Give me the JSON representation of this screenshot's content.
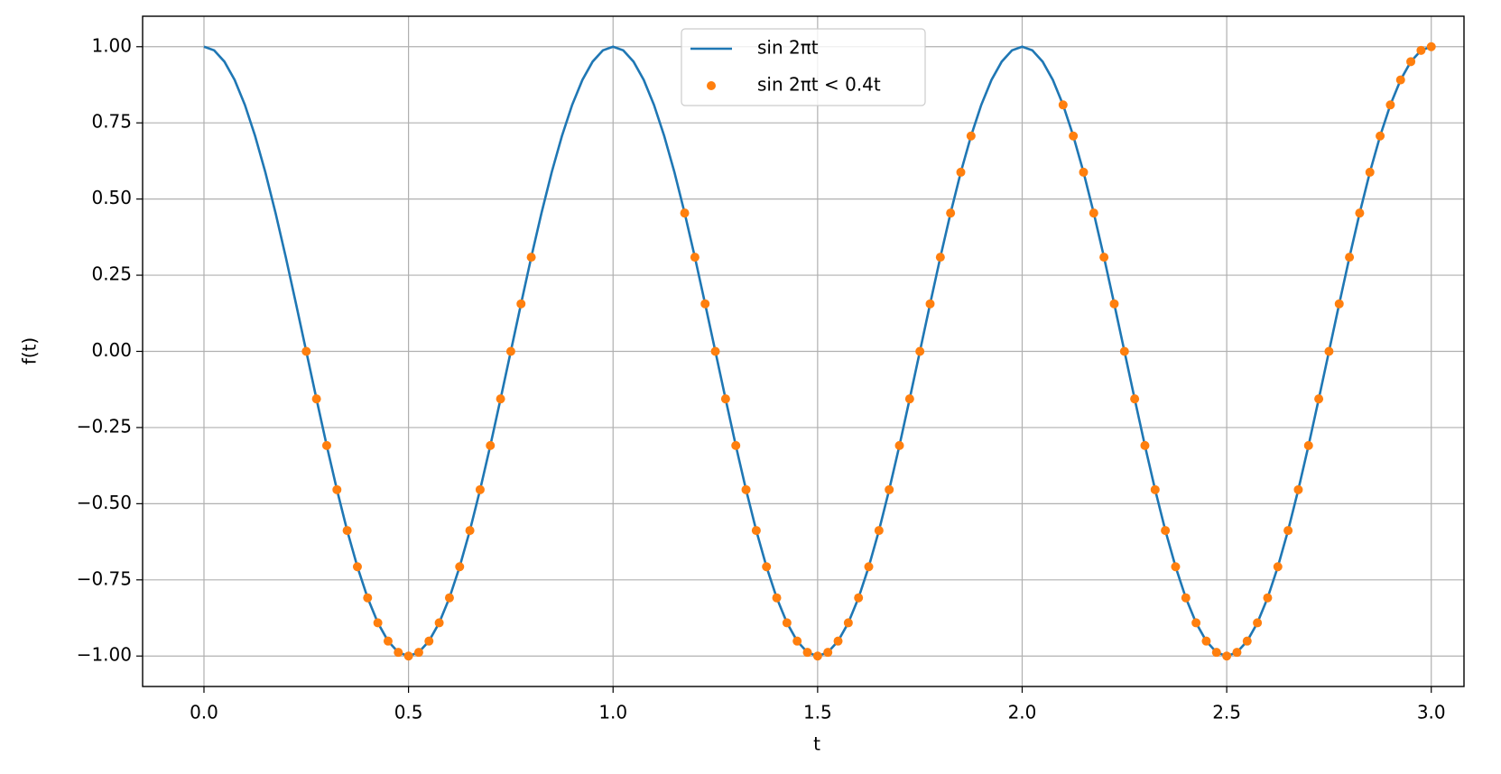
{
  "chart_data": {
    "type": "line",
    "xlabel": "t",
    "ylabel": "f(t)",
    "xlim": [
      -0.15,
      3.08
    ],
    "ylim": [
      -1.1,
      1.1
    ],
    "xticks": [
      {
        "value": 0,
        "label": "0.0"
      },
      0.5,
      {
        "value": 1,
        "label": "1.0"
      },
      1.5,
      {
        "value": 2,
        "label": "2.0"
      },
      2.5,
      {
        "value": 3,
        "label": "3.0"
      }
    ],
    "yticks": [
      {
        "value": -1,
        "label": "−1.00"
      },
      {
        "value": -0.75,
        "label": "−0.75"
      },
      {
        "value": -0.5,
        "label": "−0.50"
      },
      {
        "value": -0.25,
        "label": "−0.25"
      },
      {
        "value": 0,
        "label": "0.00"
      },
      {
        "value": 0.25,
        "label": "0.25"
      },
      {
        "value": 0.5,
        "label": "0.50"
      },
      {
        "value": 0.75,
        "label": "0.75"
      },
      {
        "value": 1,
        "label": "1.00"
      }
    ],
    "grid": true,
    "legend": "upper center",
    "series": [
      {
        "name": "sin 2πt",
        "color": "#1f77b4",
        "style": "line",
        "x": [
          0,
          0.025,
          0.05,
          0.075,
          0.1,
          0.125,
          0.15,
          0.175,
          0.2,
          0.225,
          0.25,
          0.275,
          0.3,
          0.325,
          0.35,
          0.375,
          0.4,
          0.425,
          0.45,
          0.475,
          0.5,
          0.525,
          0.55,
          0.575,
          0.6,
          0.625,
          0.65,
          0.675,
          0.7,
          0.725,
          0.75,
          0.775,
          0.8,
          0.825,
          0.85,
          0.875,
          0.9,
          0.925,
          0.95,
          0.975,
          1,
          1.025,
          1.05,
          1.075,
          1.1,
          1.125,
          1.15,
          1.175,
          1.2,
          1.225,
          1.25,
          1.275,
          1.3,
          1.325,
          1.35,
          1.375,
          1.4,
          1.425,
          1.45,
          1.475,
          1.5,
          1.525,
          1.55,
          1.575,
          1.6,
          1.625,
          1.65,
          1.675,
          1.7,
          1.725,
          1.75,
          1.775,
          1.8,
          1.825,
          1.85,
          1.875,
          1.9,
          1.925,
          1.95,
          1.975,
          2,
          2.025,
          2.05,
          2.075,
          2.1,
          2.125,
          2.15,
          2.175,
          2.2,
          2.225,
          2.25,
          2.275,
          2.3,
          2.325,
          2.35,
          2.375,
          2.4,
          2.425,
          2.45,
          2.475,
          2.5,
          2.525,
          2.55,
          2.575,
          2.6,
          2.625,
          2.65,
          2.675,
          2.7,
          2.725,
          2.75,
          2.775,
          2.8,
          2.825,
          2.85,
          2.875,
          2.9,
          2.925,
          2.95,
          2.975,
          3
        ],
        "values": [
          1,
          0.988,
          0.951,
          0.891,
          0.809,
          0.707,
          0.588,
          0.454,
          0.309,
          0.156,
          0,
          -0.156,
          -0.309,
          -0.454,
          -0.588,
          -0.707,
          -0.809,
          -0.891,
          -0.951,
          -0.988,
          -1,
          -0.988,
          -0.951,
          -0.891,
          -0.809,
          -0.707,
          -0.588,
          -0.454,
          -0.309,
          -0.156,
          0,
          0.156,
          0.309,
          0.454,
          0.588,
          0.707,
          0.809,
          0.891,
          0.951,
          0.988,
          1,
          0.988,
          0.951,
          0.891,
          0.809,
          0.707,
          0.588,
          0.454,
          0.309,
          0.156,
          0,
          -0.156,
          -0.309,
          -0.454,
          -0.588,
          -0.707,
          -0.809,
          -0.891,
          -0.951,
          -0.988,
          -1,
          -0.988,
          -0.951,
          -0.891,
          -0.809,
          -0.707,
          -0.588,
          -0.454,
          -0.309,
          -0.156,
          0,
          0.156,
          0.309,
          0.454,
          0.588,
          0.707,
          0.809,
          0.891,
          0.951,
          0.988,
          1,
          0.988,
          0.951,
          0.891,
          0.809,
          0.707,
          0.588,
          0.454,
          0.309,
          0.156,
          0,
          -0.156,
          -0.309,
          -0.454,
          -0.588,
          -0.707,
          -0.809,
          -0.891,
          -0.951,
          -0.988,
          -1,
          -0.988,
          -0.951,
          -0.891,
          -0.809,
          -0.707,
          -0.588,
          -0.454,
          -0.309,
          -0.156,
          0,
          0.156,
          0.309,
          0.454,
          0.588,
          0.707,
          0.809,
          0.891,
          0.951,
          0.988,
          1
        ]
      },
      {
        "name": "sin 2πt < 0.4t",
        "color": "#ff7f0e",
        "style": "dots",
        "x": [
          0.25,
          0.275,
          0.3,
          0.325,
          0.35,
          0.375,
          0.4,
          0.425,
          0.45,
          0.475,
          0.5,
          0.525,
          0.55,
          0.575,
          0.6,
          0.625,
          0.65,
          0.675,
          0.7,
          0.725,
          0.75,
          0.775,
          0.8,
          1.175,
          1.2,
          1.225,
          1.25,
          1.275,
          1.3,
          1.325,
          1.35,
          1.375,
          1.4,
          1.425,
          1.45,
          1.475,
          1.5,
          1.525,
          1.55,
          1.575,
          1.6,
          1.625,
          1.65,
          1.675,
          1.7,
          1.725,
          1.75,
          1.775,
          1.8,
          1.825,
          1.85,
          1.875,
          2.1,
          2.125,
          2.15,
          2.175,
          2.2,
          2.225,
          2.25,
          2.275,
          2.3,
          2.325,
          2.35,
          2.375,
          2.4,
          2.425,
          2.45,
          2.475,
          2.5,
          2.525,
          2.55,
          2.575,
          2.6,
          2.625,
          2.65,
          2.675,
          2.7,
          2.725,
          2.75,
          2.775,
          2.8,
          2.825,
          2.85,
          2.875,
          2.9,
          2.925,
          2.95,
          2.975,
          3
        ],
        "values": [
          0,
          -0.156,
          -0.309,
          -0.454,
          -0.588,
          -0.707,
          -0.809,
          -0.891,
          -0.951,
          -0.988,
          -1,
          -0.988,
          -0.951,
          -0.891,
          -0.809,
          -0.707,
          -0.588,
          -0.454,
          -0.309,
          -0.156,
          0,
          0.156,
          0.309,
          0.454,
          0.309,
          0.156,
          0,
          -0.156,
          -0.309,
          -0.454,
          -0.588,
          -0.707,
          -0.809,
          -0.891,
          -0.951,
          -0.988,
          -1,
          -0.988,
          -0.951,
          -0.891,
          -0.809,
          -0.707,
          -0.588,
          -0.454,
          -0.309,
          -0.156,
          0,
          0.156,
          0.309,
          0.454,
          0.588,
          0.707,
          0.809,
          0.707,
          0.588,
          0.454,
          0.309,
          0.156,
          0,
          -0.156,
          -0.309,
          -0.454,
          -0.588,
          -0.707,
          -0.809,
          -0.891,
          -0.951,
          -0.988,
          -1,
          -0.988,
          -0.951,
          -0.891,
          -0.809,
          -0.707,
          -0.588,
          -0.454,
          -0.309,
          -0.156,
          0,
          0.156,
          0.309,
          0.454,
          0.588,
          0.707,
          0.809,
          0.891,
          0.951,
          0.988,
          1
        ]
      }
    ]
  }
}
